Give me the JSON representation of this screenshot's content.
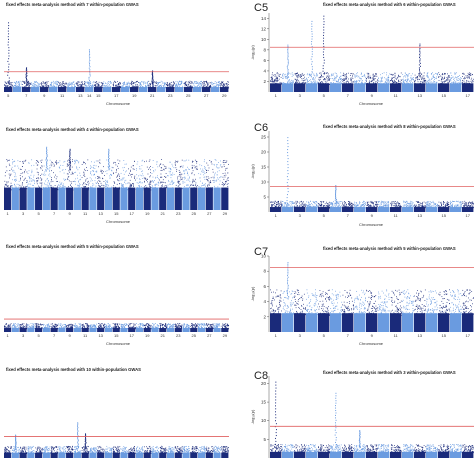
{
  "chart_data": [
    {
      "id": "C4",
      "type": "scatter",
      "subtype": "manhattan",
      "title": "fixed effects meta-analysis method with 7 within-population GWAS",
      "panel_label": "",
      "xlabel": "Chromosome",
      "ylabel": "",
      "ylim": [
        0,
        16
      ],
      "threshold": 4.5,
      "yticks": [],
      "chromosomes": [
        "5",
        "6",
        "7",
        "8",
        "9",
        "10",
        "11",
        "12",
        "13",
        "14",
        "15",
        "16",
        "17",
        "18",
        "19",
        "20",
        "21",
        "22",
        "23",
        "24",
        "25",
        "26",
        "27",
        "28",
        "29"
      ],
      "xtick_labels": [
        "5",
        "",
        "7",
        "",
        "9",
        "",
        "11",
        "",
        "13",
        "14",
        "15",
        "",
        "17",
        "",
        "19",
        "",
        "21",
        "",
        "23",
        "",
        "25",
        "",
        "27",
        "",
        "29"
      ],
      "baseline": 2.0,
      "peaks": [
        {
          "chromosome": "5",
          "value": 15.5
        },
        {
          "chromosome": "7",
          "value": 5.5
        },
        {
          "chromosome": "14",
          "value": 9.5
        },
        {
          "chromosome": "21",
          "value": 4.8
        }
      ],
      "colors": {
        "odd": "#1a2a7a",
        "even": "#6a9be0",
        "threshold": "#e06060"
      }
    },
    {
      "id": "C5",
      "type": "scatter",
      "subtype": "manhattan",
      "title": "fixed effects meta-analysis method with 6 within-population GWAS",
      "panel_label": "C5",
      "xlabel": "Chromosome",
      "ylabel": "-log₁₀(p)",
      "ylim": [
        0,
        15
      ],
      "threshold": 8.5,
      "yticks": [
        2,
        4,
        6,
        8,
        10,
        12,
        14
      ],
      "chromosomes": [
        "1",
        "2",
        "3",
        "4",
        "5",
        "6",
        "7",
        "8",
        "9",
        "10",
        "11",
        "12",
        "13",
        "14",
        "15",
        "16",
        "17"
      ],
      "xtick_labels": [
        "1",
        "",
        "3",
        "",
        "5",
        "",
        "7",
        "",
        "9",
        "",
        "11",
        "",
        "13",
        "",
        "15",
        "",
        "17"
      ],
      "baseline": 3.0,
      "peaks": [
        {
          "chromosome": "2",
          "value": 9.0
        },
        {
          "chromosome": "4",
          "value": 13.5
        },
        {
          "chromosome": "5",
          "value": 14.5
        },
        {
          "chromosome": "13",
          "value": 9.2
        }
      ],
      "colors": {
        "odd": "#1a2a7a",
        "even": "#6a9be0",
        "threshold": "#e06060"
      }
    },
    {
      "id": "C4b",
      "type": "scatter",
      "subtype": "manhattan",
      "title": "fixed effects meta-analysis method with 4 within-population GWAS",
      "panel_label": "",
      "xlabel": "Chromosome",
      "ylabel": "",
      "ylim": [
        0,
        10
      ],
      "threshold": null,
      "yticks": [],
      "chromosomes": [
        "1",
        "2",
        "3",
        "4",
        "5",
        "6",
        "7",
        "8",
        "9",
        "10",
        "11",
        "12",
        "13",
        "14",
        "15",
        "16",
        "17",
        "18",
        "19",
        "20",
        "21",
        "22",
        "23",
        "24",
        "25",
        "26",
        "27",
        "28",
        "29"
      ],
      "xtick_labels": [
        "1",
        "",
        "3",
        "",
        "5",
        "",
        "7",
        "",
        "9",
        "",
        "11",
        "",
        "13",
        "",
        "15",
        "",
        "17",
        "",
        "19",
        "",
        "21",
        "",
        "23",
        "",
        "25",
        "",
        "27",
        "",
        "29"
      ],
      "baseline": 6.0,
      "peaks": [
        {
          "chromosome": "6",
          "value": 9.3
        },
        {
          "chromosome": "9",
          "value": 9.0
        },
        {
          "chromosome": "14",
          "value": 9.0
        }
      ],
      "colors": {
        "odd": "#1a2a7a",
        "even": "#6a9be0",
        "threshold": "#e06060"
      }
    },
    {
      "id": "C6",
      "type": "scatter",
      "subtype": "manhattan",
      "title": "fixed effects meta-analysis method with 8 within-population GWAS",
      "panel_label": "C6",
      "xlabel": "Chromosome",
      "ylabel": "-log₁₀(p)",
      "ylim": [
        0,
        27
      ],
      "threshold": 8.5,
      "yticks": [
        5,
        10,
        15,
        20,
        25
      ],
      "chromosomes": [
        "1",
        "2",
        "3",
        "4",
        "5",
        "6",
        "7",
        "8",
        "9",
        "10",
        "11",
        "12",
        "13",
        "14",
        "15",
        "16",
        "17"
      ],
      "xtick_labels": [
        "1",
        "",
        "3",
        "",
        "5",
        "",
        "7",
        "",
        "9",
        "",
        "11",
        "",
        "13",
        "",
        "15",
        "",
        "17"
      ],
      "baseline": 3.0,
      "peaks": [
        {
          "chromosome": "2",
          "value": 25.0
        },
        {
          "chromosome": "6",
          "value": 9.0
        }
      ],
      "colors": {
        "odd": "#1a2a7a",
        "even": "#6a9be0",
        "threshold": "#e06060"
      }
    },
    {
      "id": "C4c",
      "type": "scatter",
      "subtype": "manhattan",
      "title": "fixed effects meta-analysis method with 5 within-population GWAS",
      "panel_label": "",
      "xlabel": "Chromosome",
      "ylabel": "",
      "ylim": [
        0,
        10
      ],
      "threshold": 1.8,
      "yticks": [],
      "chromosomes": [
        "1",
        "2",
        "3",
        "4",
        "5",
        "6",
        "7",
        "8",
        "9",
        "10",
        "11",
        "12",
        "13",
        "14",
        "15",
        "16",
        "17",
        "18",
        "19",
        "20",
        "21",
        "22",
        "23",
        "24",
        "25",
        "26",
        "27",
        "28",
        "29"
      ],
      "xtick_labels": [
        "1",
        "",
        "3",
        "",
        "5",
        "",
        "7",
        "",
        "9",
        "",
        "11",
        "",
        "13",
        "",
        "15",
        "",
        "17",
        "",
        "19",
        "",
        "21",
        "",
        "23",
        "",
        "25",
        "",
        "27",
        "",
        "29"
      ],
      "baseline": 1.0,
      "peaks": [],
      "colors": {
        "odd": "#1a2a7a",
        "even": "#6a9be0",
        "threshold": "#e06060"
      }
    },
    {
      "id": "C7",
      "type": "scatter",
      "subtype": "manhattan",
      "title": "fixed effects meta-analysis method with 5 within-population GWAS",
      "panel_label": "C7",
      "xlabel": "Chromosome",
      "ylabel": "-log₁₀(p)",
      "ylim": [
        0,
        10
      ],
      "threshold": 8.5,
      "yticks": [
        2,
        4,
        6,
        8,
        10
      ],
      "chromosomes": [
        "1",
        "2",
        "3",
        "4",
        "5",
        "6",
        "7",
        "8",
        "9",
        "10",
        "11",
        "12",
        "13",
        "14",
        "15",
        "16",
        "17"
      ],
      "xtick_labels": [
        "1",
        "",
        "3",
        "",
        "5",
        "",
        "7",
        "",
        "9",
        "",
        "11",
        "",
        "13",
        "",
        "15",
        "",
        "17"
      ],
      "baseline": 4.5,
      "peaks": [
        {
          "chromosome": "2",
          "value": 9.2
        }
      ],
      "colors": {
        "odd": "#1a2a7a",
        "even": "#6a9be0",
        "threshold": "#e06060"
      }
    },
    {
      "id": "C4d",
      "type": "scatter",
      "subtype": "manhattan",
      "title": "fixed effects meta-analysis method with 10 within-population GWAS",
      "panel_label": "",
      "xlabel": "",
      "ylabel": "",
      "ylim": [
        0,
        12
      ],
      "threshold": 3.3,
      "yticks": [],
      "chromosomes": [
        "1",
        "2",
        "3",
        "4",
        "5",
        "6",
        "7",
        "8",
        "9",
        "10",
        "11",
        "12",
        "13",
        "14",
        "15",
        "16",
        "17",
        "18",
        "19",
        "20",
        "21",
        "22",
        "23",
        "24",
        "25",
        "26",
        "27",
        "28",
        "29"
      ],
      "xtick_labels": [],
      "baseline": 1.5,
      "peaks": [
        {
          "chromosome": "2",
          "value": 3.6
        },
        {
          "chromosome": "10",
          "value": 5.5
        },
        {
          "chromosome": "11",
          "value": 3.8
        }
      ],
      "colors": {
        "odd": "#1a2a7a",
        "even": "#6a9be0",
        "threshold": "#e06060"
      }
    },
    {
      "id": "C8",
      "type": "scatter",
      "subtype": "manhattan",
      "title": "fixed effects meta-analysis method with 3 within-population GWAS",
      "panel_label": "C8",
      "xlabel": "",
      "ylabel": "-log₁₀(p)",
      "ylim": [
        0,
        22
      ],
      "threshold": 8.5,
      "yticks": [
        5,
        10,
        15,
        20
      ],
      "chromosomes": [
        "1",
        "2",
        "3",
        "4",
        "5",
        "6",
        "7",
        "8",
        "9",
        "10",
        "11",
        "12",
        "13",
        "14",
        "15",
        "16",
        "17"
      ],
      "xtick_labels": [],
      "baseline": 3.0,
      "peaks": [
        {
          "chromosome": "1",
          "value": 20.5
        },
        {
          "chromosome": "6",
          "value": 17.5
        },
        {
          "chromosome": "8",
          "value": 7.5
        }
      ],
      "colors": {
        "odd": "#1a2a7a",
        "even": "#6a9be0",
        "threshold": "#e06060"
      }
    }
  ]
}
